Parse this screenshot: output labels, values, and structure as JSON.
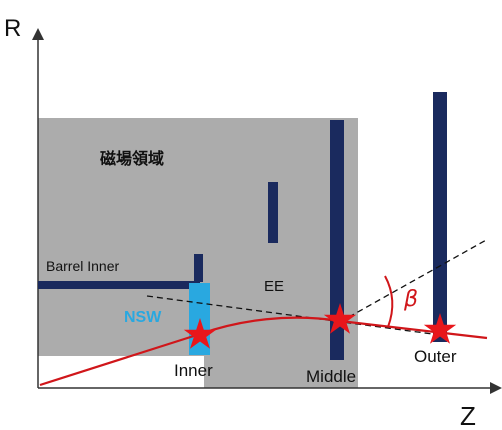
{
  "axes": {
    "y_label": "R",
    "x_label": "Z"
  },
  "regions": {
    "magnetic_field_label": "磁場領域"
  },
  "detectors": {
    "barrel_inner": "Barrel Inner",
    "nsw": "NSW",
    "ee": "EE",
    "inner": "Inner",
    "middle": "Middle",
    "outer": "Outer"
  },
  "angle": {
    "symbol": "β"
  },
  "colors": {
    "field_region": "#acacac",
    "detector_dark": "#1a2a5e",
    "nsw": "#29a8e0",
    "track": "#d0161a",
    "hit_star": "#e8161b",
    "nsw_label": "#29a8e0",
    "beta_label": "#d0161a",
    "axis": "#333333",
    "dashed": "#111111"
  }
}
